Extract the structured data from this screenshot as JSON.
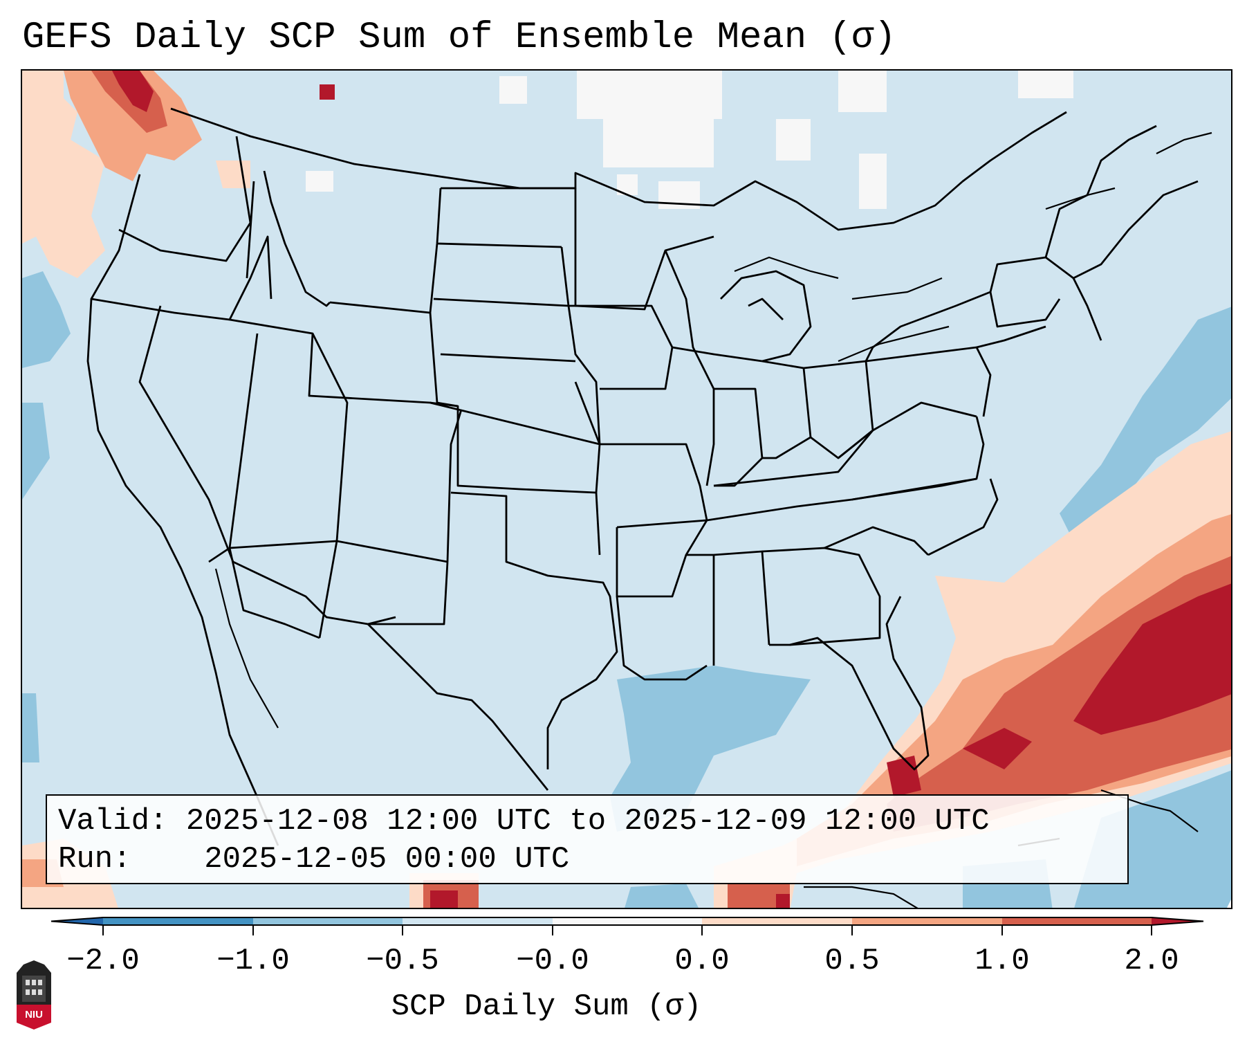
{
  "title": "GEFS Daily SCP Sum of Ensemble Mean (σ)",
  "info": {
    "valid_label": "Valid:",
    "valid_value": "2025-12-08 12:00 UTC to 2025-12-09 12:00 UTC",
    "run_label": "Run:",
    "run_value": "2025-12-05 00:00 UTC"
  },
  "colorbar": {
    "label": "SCP Daily Sum (σ)",
    "ticks": [
      "−2.0",
      "−1.0",
      "−0.5",
      "−0.0",
      "0.0",
      "0.5",
      "1.0",
      "2.0"
    ],
    "colors": [
      "#4393c3",
      "#92c5de",
      "#d1e5f0",
      "#f7f7f7",
      "#fddbc7",
      "#f4a582",
      "#d6604d"
    ],
    "extend_low_color": "#2166ac",
    "extend_high_color": "#b2182b"
  },
  "map": {
    "projection": "Lambert conformal, CONUS",
    "background_category": "#d1e5f0",
    "regions": [
      {
        "name": "Southeast US / Gulf of Mexico / western Atlantic",
        "category": "positive, up to > 2.0 σ"
      },
      {
        "name": "Pacific Northwest",
        "category": "positive, up to > 2.0 σ"
      },
      {
        "name": "Northern Plains / Upper Midwest",
        "category": "near zero"
      },
      {
        "name": "Gulf coast of Texas / Louisiana",
        "category": "-1.0 to -0.5 σ"
      },
      {
        "name": "Offshore Mid-Atlantic",
        "category": "-1.0 to -0.5 σ"
      }
    ]
  },
  "logo": {
    "text": "NIU"
  }
}
